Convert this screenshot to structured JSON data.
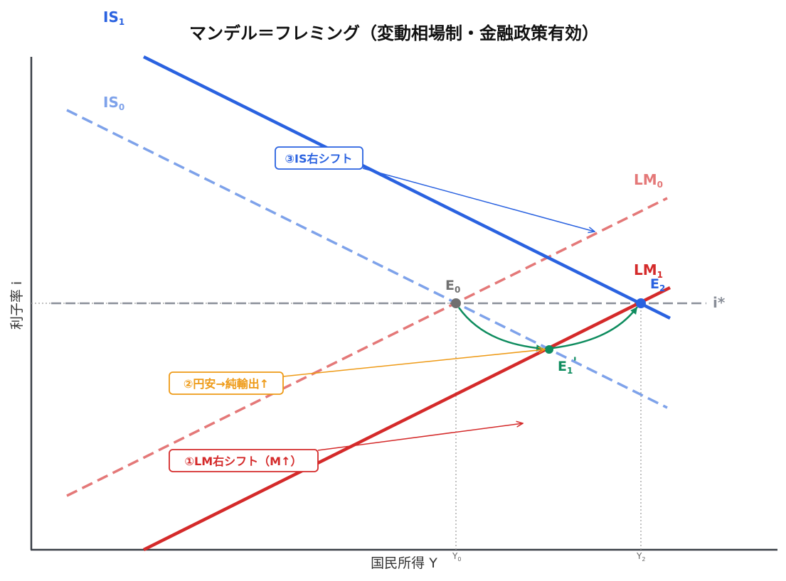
{
  "title": "マンデル＝フレミング（変動相場制・金融政策有効）",
  "axes": {
    "x_label": "国民所得 Y",
    "y_label": "利子率 i",
    "x_ticks": [
      {
        "main": "Y",
        "sub": "0"
      },
      {
        "main": "Y",
        "sub": "2"
      }
    ]
  },
  "curves": {
    "is1": {
      "main": "IS",
      "sub": "1",
      "color": "#2a62e0"
    },
    "is0": {
      "main": "IS",
      "sub": "0",
      "color": "#7ea2ea"
    },
    "lm0": {
      "main": "LM",
      "sub": "0",
      "color": "#e47878"
    },
    "lm1": {
      "main": "LM",
      "sub": "1",
      "color": "#d42a2a"
    },
    "istar": {
      "label": "i*",
      "color": "#8a8f99"
    }
  },
  "points": {
    "e0": {
      "main": "E",
      "sub": "0",
      "color": "#707070"
    },
    "e1": {
      "main": "E",
      "sub": "1",
      "suffix": "'",
      "color": "#0e8c5e"
    },
    "e2": {
      "main": "E",
      "sub": "2",
      "color": "#2a62e0"
    }
  },
  "annotations": {
    "step1": {
      "text": "①LM右シフト（M↑）",
      "color": "#d42a2a"
    },
    "step2": {
      "text": "②円安→純輸出↑",
      "color": "#ee9a16"
    },
    "step3": {
      "text": "③IS右シフト",
      "color": "#2a62e0"
    }
  }
}
